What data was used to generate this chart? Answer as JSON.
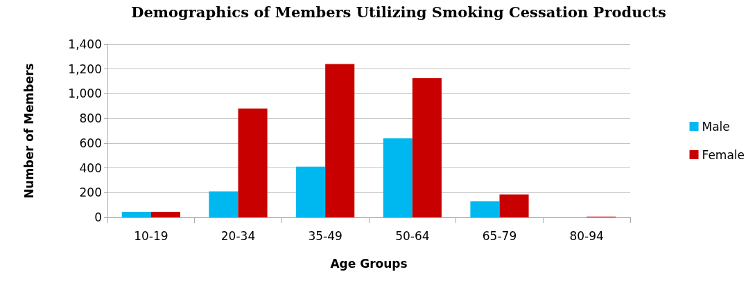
{
  "chart_data": {
    "type": "bar",
    "title": "Demographics of Members Utilizing Smoking Cessation Products",
    "xlabel": "Age Groups",
    "ylabel": "Number of Members",
    "categories": [
      "10-19",
      "20-34",
      "35-49",
      "50-64",
      "65-79",
      "80-94"
    ],
    "series": [
      {
        "name": "Male",
        "color": "#00b8f0",
        "values": [
          45,
          210,
          410,
          640,
          130,
          0
        ]
      },
      {
        "name": "Female",
        "color": "#c80000",
        "values": [
          45,
          880,
          1240,
          1125,
          185,
          5
        ]
      }
    ],
    "ylim": [
      0,
      1400
    ],
    "yticks": [
      0,
      200,
      400,
      600,
      800,
      {
        "value": 1000,
        "label": "1,000"
      },
      {
        "value": 1200,
        "label": "1,200"
      },
      {
        "value": 1400,
        "label": "1,400"
      }
    ],
    "grid": "y",
    "legend": "right"
  }
}
